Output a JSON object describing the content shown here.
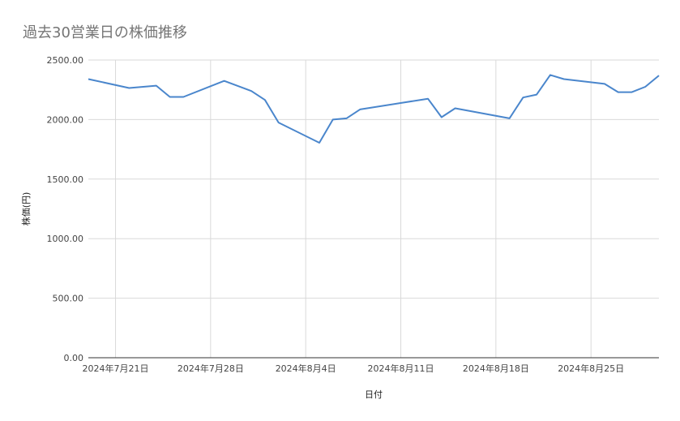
{
  "chart_data": {
    "type": "line",
    "title": "過去30営業日の株価推移",
    "xlabel": "日付",
    "ylabel": "株価(円)",
    "ylim": [
      0,
      2500
    ],
    "y_ticks": [
      "0.00",
      "500.00",
      "1000.00",
      "1500.00",
      "2000.00",
      "2500.00"
    ],
    "y_tick_values": [
      0,
      500,
      1000,
      1500,
      2000,
      2500
    ],
    "x_range": [
      "2024-07-19",
      "2024-08-30"
    ],
    "x_ticks": [
      {
        "label": "2024年7月21日",
        "date": "2024-07-21"
      },
      {
        "label": "2024年7月28日",
        "date": "2024-07-28"
      },
      {
        "label": "2024年8月4日",
        "date": "2024-08-04"
      },
      {
        "label": "2024年8月11日",
        "date": "2024-08-11"
      },
      {
        "label": "2024年8月18日",
        "date": "2024-08-18"
      },
      {
        "label": "2024年8月25日",
        "date": "2024-08-25"
      }
    ],
    "grid": true,
    "line_color": "#4a86cc",
    "series": [
      {
        "x": [
          "2024-07-19",
          "2024-07-22",
          "2024-07-24",
          "2024-07-25",
          "2024-07-26",
          "2024-07-29",
          "2024-07-31",
          "2024-08-01",
          "2024-08-02",
          "2024-08-05",
          "2024-08-06",
          "2024-08-07",
          "2024-08-08",
          "2024-08-13",
          "2024-08-14",
          "2024-08-15",
          "2024-08-19",
          "2024-08-20",
          "2024-08-21",
          "2024-08-22",
          "2024-08-23",
          "2024-08-26",
          "2024-08-27",
          "2024-08-28",
          "2024-08-29",
          "2024-08-30"
        ],
        "values": [
          2340,
          2265,
          2285,
          2190,
          2190,
          2325,
          2240,
          2165,
          1975,
          1805,
          2000,
          2010,
          2085,
          2175,
          2020,
          2095,
          2010,
          2185,
          2210,
          2375,
          2340,
          2300,
          2230,
          2230,
          2275,
          2370
        ]
      }
    ]
  }
}
